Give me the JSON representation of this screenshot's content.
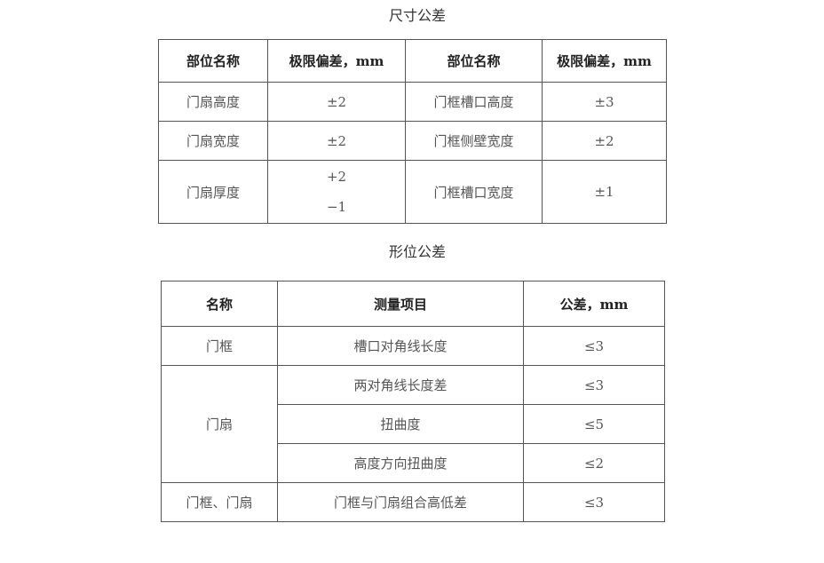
{
  "dimension_table": {
    "title": "尺寸公差",
    "headers": [
      "部位名称",
      "极限偏差，mm",
      "部位名称",
      "极限偏差，mm"
    ],
    "rows": [
      [
        "门扇高度",
        "±2",
        "门框槽口高度",
        "±3"
      ],
      [
        "门扇宽度",
        "±2",
        "门框侧壁宽度",
        "±2"
      ],
      [
        "门扇厚度",
        [
          "+2",
          "−1"
        ],
        "门框槽口宽度",
        "±1"
      ]
    ]
  },
  "form_table": {
    "title": "形位公差",
    "headers": [
      "名称",
      "测量项目",
      "公差，mm"
    ],
    "groups": [
      {
        "name": "门框",
        "items": [
          {
            "item": "槽口对角线长度",
            "tol": "≤3"
          }
        ]
      },
      {
        "name": "门扇",
        "items": [
          {
            "item": "两对角线长度差",
            "tol": "≤3"
          },
          {
            "item": "扭曲度",
            "tol": "≤5"
          },
          {
            "item": "高度方向扭曲度",
            "tol": "≤2"
          }
        ]
      },
      {
        "name": "门框、门扇",
        "items": [
          {
            "item": "门框与门扇组合高低差",
            "tol": "≤3"
          }
        ]
      }
    ]
  }
}
